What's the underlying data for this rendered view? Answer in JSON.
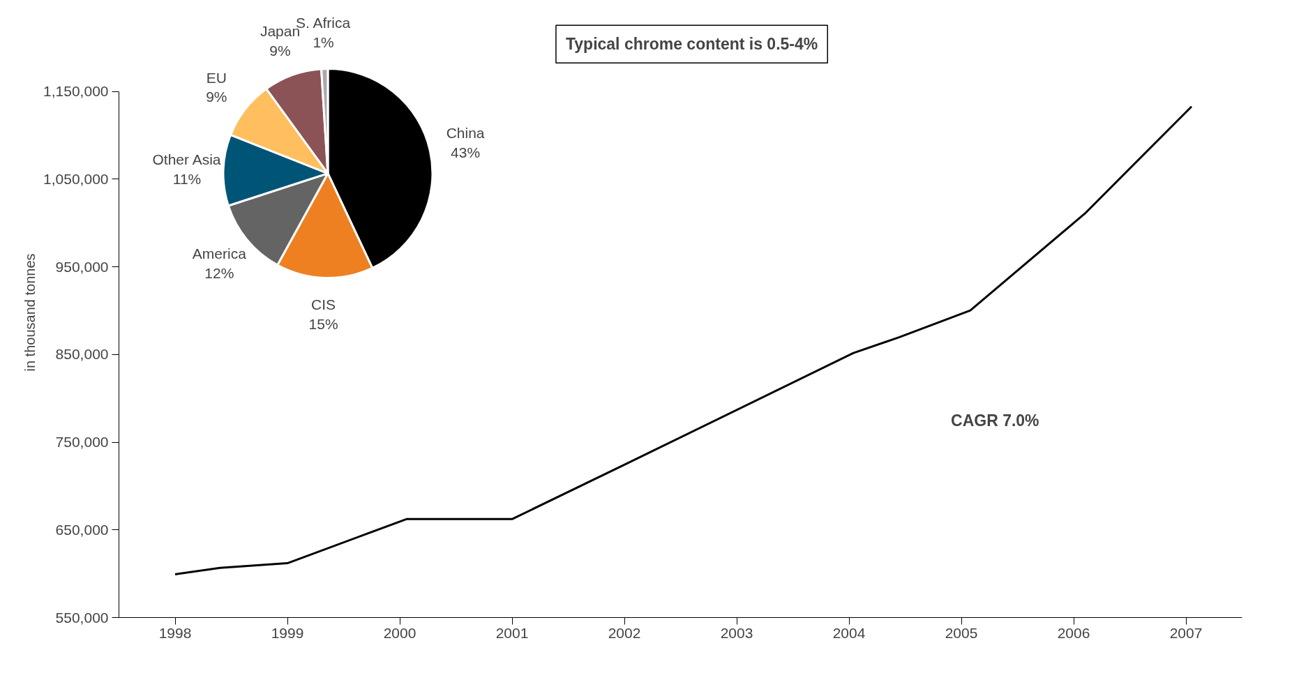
{
  "chart_data": [
    {
      "type": "pie",
      "categories": [
        "China",
        "CIS",
        "America",
        "Other Asia",
        "EU",
        "Japan",
        "S. Africa"
      ],
      "values": [
        43,
        15,
        12,
        11,
        9,
        9,
        1
      ],
      "colors": [
        "#000000",
        "#ee8022",
        "#646464",
        "#005577",
        "#ffbf5f",
        "#8b5356",
        "#aaaaaa"
      ],
      "value_labels": [
        "43%",
        "15%",
        "12%",
        "11%",
        "9%",
        "9%",
        "1%"
      ]
    },
    {
      "type": "line",
      "ylabel": "in thousand tonnes",
      "x": [
        1998,
        1998.4,
        1999,
        2000.06,
        2001,
        2002,
        2004.04,
        2004.45,
        2005.08,
        2006.1,
        2007.05
      ],
      "series": [
        {
          "color": "#000000",
          "values": [
            599400,
            606600,
            612000,
            662300,
            662300,
            724300,
            851800,
            869800,
            900300,
            1010800,
            1132900
          ]
        }
      ],
      "xlim": [
        1997.5,
        2007.5
      ],
      "xticks": [
        {
          "value": 1998,
          "label": "1998"
        },
        {
          "value": 1999,
          "label": "1999"
        },
        {
          "value": 2000,
          "label": "2000"
        },
        {
          "value": 2001,
          "label": "2001"
        },
        {
          "value": 2002,
          "label": "2002"
        },
        {
          "value": 2003,
          "label": "2003"
        },
        {
          "value": 2004,
          "label": "2004"
        },
        {
          "value": 2005,
          "label": "2005"
        },
        {
          "value": 2006,
          "label": "2006"
        },
        {
          "value": 2007,
          "label": "2007"
        }
      ],
      "ylim": [
        550000,
        1150000
      ],
      "yticks": [
        {
          "value": 550000,
          "label": "550,000"
        },
        {
          "value": 650000,
          "label": "650,000"
        },
        {
          "value": 750000,
          "label": "750,000"
        },
        {
          "value": 850000,
          "label": "850,000"
        },
        {
          "value": 950000,
          "label": "950,000"
        },
        {
          "value": 1050000,
          "label": "1,050,000"
        },
        {
          "value": 1150000,
          "label": "1,150,000"
        }
      ],
      "grid": false,
      "marker": "none",
      "line_style": "solid",
      "annotations": [
        "Typical chrome content is 0.5-4%",
        "CAGR 7.0%"
      ]
    }
  ]
}
